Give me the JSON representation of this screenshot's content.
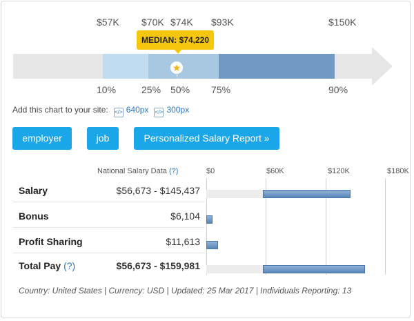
{
  "range_chart": {
    "top_ticks": [
      "$57K",
      "$70K",
      "$74K",
      "$93K",
      "$150K"
    ],
    "percentiles": [
      "10%",
      "25%",
      "50%",
      "75%",
      "90%"
    ],
    "median_label": "MEDIAN: $74,220",
    "median_icon": "star-icon",
    "colors": {
      "p10_25": "#bfdcf0",
      "p25_50": "#a8c8e2",
      "p50_75": "#9ab9d8",
      "p75_90": "#7299c3",
      "arrow": "#e6e6e6",
      "median": "#f4c70c"
    }
  },
  "embed": {
    "label": "Add this chart to your site:",
    "link1": "640px",
    "link2": "300px",
    "icon": "embed-code-icon"
  },
  "buttons": {
    "employer": "employer",
    "job": "job",
    "report": "Personalized Salary Report »",
    "color": "#1aa6e8"
  },
  "table": {
    "header": "National Salary Data",
    "help": "(?)",
    "axis_ticks": [
      "$0",
      "$60K",
      "$120K",
      "$180K"
    ],
    "rows": [
      {
        "label": "Salary",
        "value": "$56,673 - $145,437",
        "min": 56673,
        "max": 145437
      },
      {
        "label": "Bonus",
        "value": "$6,104",
        "min": 0,
        "max": 6104
      },
      {
        "label": "Profit Sharing",
        "value": "$11,613",
        "min": 0,
        "max": 11613
      },
      {
        "label": "Total Pay",
        "help": "(?)",
        "value": "$56,673 - $159,981",
        "min": 56673,
        "max": 159981
      }
    ]
  },
  "footer": "Country: United States | Currency: USD | Updated: 25 Mar 2017 | Individuals Reporting: 13"
}
